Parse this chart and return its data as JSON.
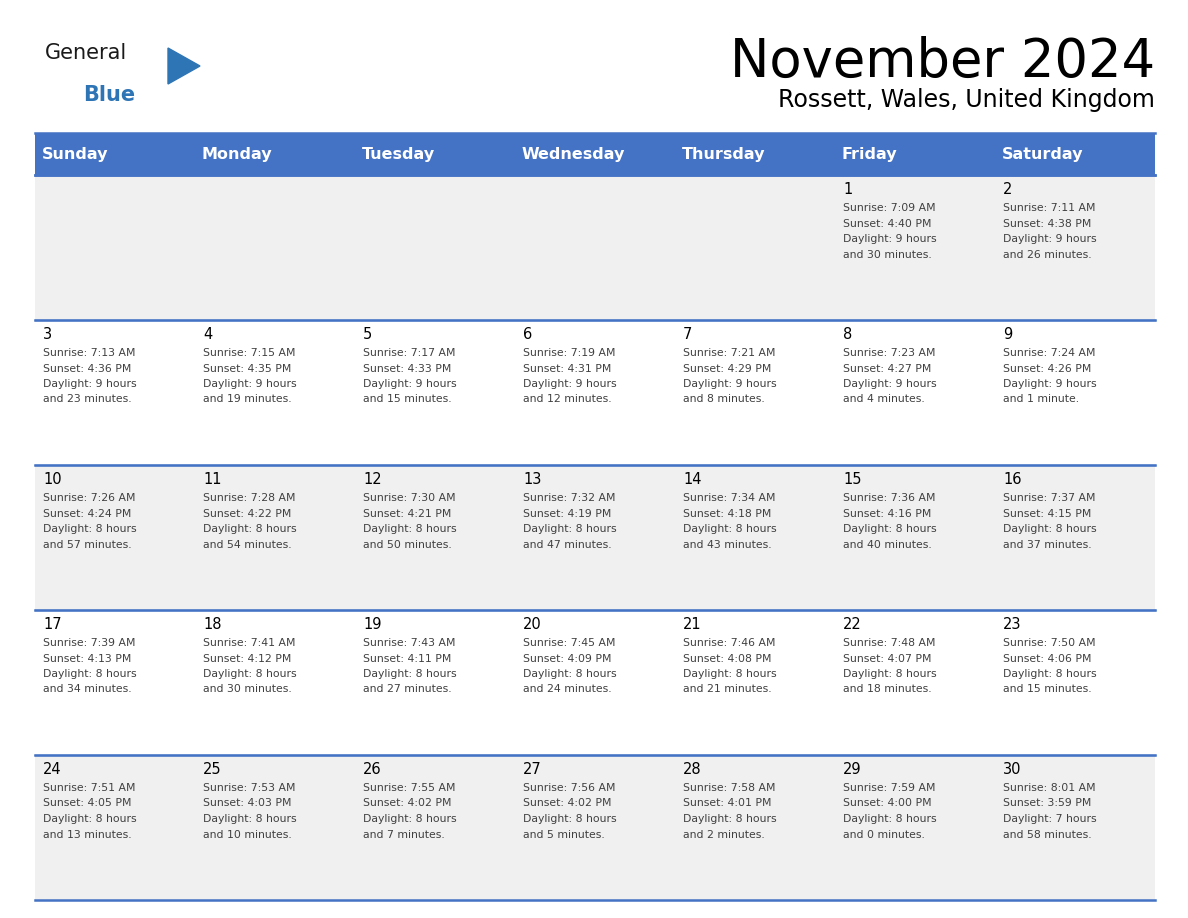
{
  "title": "November 2024",
  "subtitle": "Rossett, Wales, United Kingdom",
  "header_color": "#4472C4",
  "header_text_color": "#FFFFFF",
  "days_of_week": [
    "Sunday",
    "Monday",
    "Tuesday",
    "Wednesday",
    "Thursday",
    "Friday",
    "Saturday"
  ],
  "border_color": "#4472C4",
  "text_color": "#404040",
  "calendar_data": [
    [
      {
        "day": "",
        "sunrise": "",
        "sunset": "",
        "daylight": ""
      },
      {
        "day": "",
        "sunrise": "",
        "sunset": "",
        "daylight": ""
      },
      {
        "day": "",
        "sunrise": "",
        "sunset": "",
        "daylight": ""
      },
      {
        "day": "",
        "sunrise": "",
        "sunset": "",
        "daylight": ""
      },
      {
        "day": "",
        "sunrise": "",
        "sunset": "",
        "daylight": ""
      },
      {
        "day": "1",
        "sunrise": "7:09 AM",
        "sunset": "4:40 PM",
        "daylight": "9 hours\nand 30 minutes."
      },
      {
        "day": "2",
        "sunrise": "7:11 AM",
        "sunset": "4:38 PM",
        "daylight": "9 hours\nand 26 minutes."
      }
    ],
    [
      {
        "day": "3",
        "sunrise": "7:13 AM",
        "sunset": "4:36 PM",
        "daylight": "9 hours\nand 23 minutes."
      },
      {
        "day": "4",
        "sunrise": "7:15 AM",
        "sunset": "4:35 PM",
        "daylight": "9 hours\nand 19 minutes."
      },
      {
        "day": "5",
        "sunrise": "7:17 AM",
        "sunset": "4:33 PM",
        "daylight": "9 hours\nand 15 minutes."
      },
      {
        "day": "6",
        "sunrise": "7:19 AM",
        "sunset": "4:31 PM",
        "daylight": "9 hours\nand 12 minutes."
      },
      {
        "day": "7",
        "sunrise": "7:21 AM",
        "sunset": "4:29 PM",
        "daylight": "9 hours\nand 8 minutes."
      },
      {
        "day": "8",
        "sunrise": "7:23 AM",
        "sunset": "4:27 PM",
        "daylight": "9 hours\nand 4 minutes."
      },
      {
        "day": "9",
        "sunrise": "7:24 AM",
        "sunset": "4:26 PM",
        "daylight": "9 hours\nand 1 minute."
      }
    ],
    [
      {
        "day": "10",
        "sunrise": "7:26 AM",
        "sunset": "4:24 PM",
        "daylight": "8 hours\nand 57 minutes."
      },
      {
        "day": "11",
        "sunrise": "7:28 AM",
        "sunset": "4:22 PM",
        "daylight": "8 hours\nand 54 minutes."
      },
      {
        "day": "12",
        "sunrise": "7:30 AM",
        "sunset": "4:21 PM",
        "daylight": "8 hours\nand 50 minutes."
      },
      {
        "day": "13",
        "sunrise": "7:32 AM",
        "sunset": "4:19 PM",
        "daylight": "8 hours\nand 47 minutes."
      },
      {
        "day": "14",
        "sunrise": "7:34 AM",
        "sunset": "4:18 PM",
        "daylight": "8 hours\nand 43 minutes."
      },
      {
        "day": "15",
        "sunrise": "7:36 AM",
        "sunset": "4:16 PM",
        "daylight": "8 hours\nand 40 minutes."
      },
      {
        "day": "16",
        "sunrise": "7:37 AM",
        "sunset": "4:15 PM",
        "daylight": "8 hours\nand 37 minutes."
      }
    ],
    [
      {
        "day": "17",
        "sunrise": "7:39 AM",
        "sunset": "4:13 PM",
        "daylight": "8 hours\nand 34 minutes."
      },
      {
        "day": "18",
        "sunrise": "7:41 AM",
        "sunset": "4:12 PM",
        "daylight": "8 hours\nand 30 minutes."
      },
      {
        "day": "19",
        "sunrise": "7:43 AM",
        "sunset": "4:11 PM",
        "daylight": "8 hours\nand 27 minutes."
      },
      {
        "day": "20",
        "sunrise": "7:45 AM",
        "sunset": "4:09 PM",
        "daylight": "8 hours\nand 24 minutes."
      },
      {
        "day": "21",
        "sunrise": "7:46 AM",
        "sunset": "4:08 PM",
        "daylight": "8 hours\nand 21 minutes."
      },
      {
        "day": "22",
        "sunrise": "7:48 AM",
        "sunset": "4:07 PM",
        "daylight": "8 hours\nand 18 minutes."
      },
      {
        "day": "23",
        "sunrise": "7:50 AM",
        "sunset": "4:06 PM",
        "daylight": "8 hours\nand 15 minutes."
      }
    ],
    [
      {
        "day": "24",
        "sunrise": "7:51 AM",
        "sunset": "4:05 PM",
        "daylight": "8 hours\nand 13 minutes."
      },
      {
        "day": "25",
        "sunrise": "7:53 AM",
        "sunset": "4:03 PM",
        "daylight": "8 hours\nand 10 minutes."
      },
      {
        "day": "26",
        "sunrise": "7:55 AM",
        "sunset": "4:02 PM",
        "daylight": "8 hours\nand 7 minutes."
      },
      {
        "day": "27",
        "sunrise": "7:56 AM",
        "sunset": "4:02 PM",
        "daylight": "8 hours\nand 5 minutes."
      },
      {
        "day": "28",
        "sunrise": "7:58 AM",
        "sunset": "4:01 PM",
        "daylight": "8 hours\nand 2 minutes."
      },
      {
        "day": "29",
        "sunrise": "7:59 AM",
        "sunset": "4:00 PM",
        "daylight": "8 hours\nand 0 minutes."
      },
      {
        "day": "30",
        "sunrise": "8:01 AM",
        "sunset": "3:59 PM",
        "daylight": "7 hours\nand 58 minutes."
      }
    ]
  ]
}
